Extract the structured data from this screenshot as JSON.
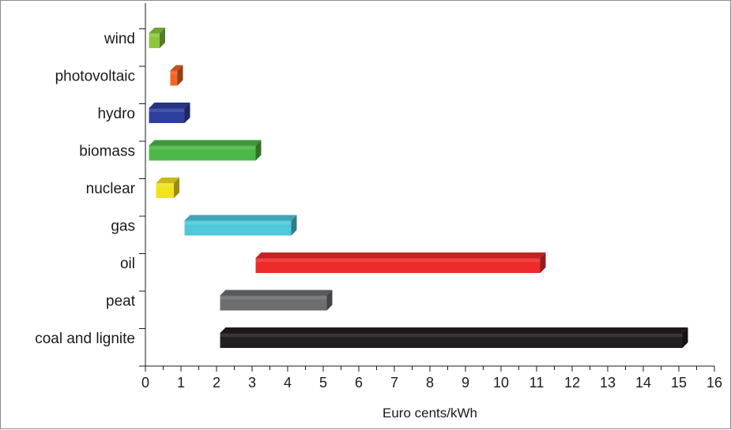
{
  "chart_data": {
    "type": "bar",
    "orientation": "horizontal",
    "style": "floating-range-3d",
    "xlabel": "Euro cents/kWh",
    "ylabel": "",
    "title": "",
    "xlim": [
      0,
      16
    ],
    "x_ticks": [
      "0",
      "1",
      "2",
      "3",
      "4",
      "5",
      "6",
      "7",
      "8",
      "9",
      "10",
      "11",
      "12",
      "13",
      "14",
      "15",
      "16"
    ],
    "grid": false,
    "categories": [
      "wind",
      "photovoltaic",
      "hydro",
      "biomass",
      "nuclear",
      "gas",
      "oil",
      "peat",
      "coal and lignite"
    ],
    "ranges": [
      [
        0.1,
        0.4
      ],
      [
        0.7,
        0.9
      ],
      [
        0.1,
        1.1
      ],
      [
        0.1,
        3.1
      ],
      [
        0.3,
        0.8
      ],
      [
        1.1,
        4.1
      ],
      [
        3.1,
        11.1
      ],
      [
        2.1,
        5.1
      ],
      [
        2.1,
        15.1
      ]
    ],
    "colors": [
      "#8dc63f",
      "#f26522",
      "#2e3f9f",
      "#4db848",
      "#f2e31b",
      "#4fc8db",
      "#ee2b2b",
      "#6d6e71",
      "#231f20"
    ]
  }
}
